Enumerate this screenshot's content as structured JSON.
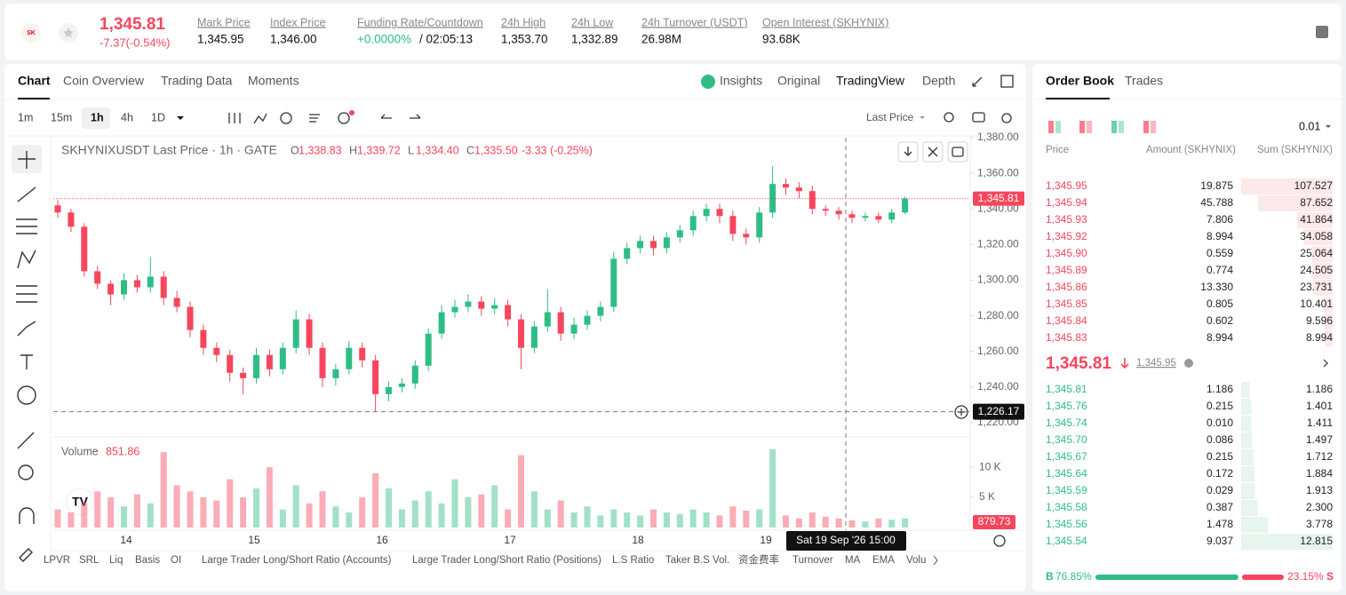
{
  "header": {
    "price": "1,345.81",
    "change": "-7.37(-0.54%)",
    "stats": [
      {
        "label": "Mark Price",
        "value": "1,345.95"
      },
      {
        "label": "Index Price",
        "value": "1,346.00"
      },
      {
        "label": "Funding Rate/Countdown",
        "value": "+0.0000%",
        "extra": "/ 02:05:13"
      },
      {
        "label": "24h High",
        "value": "1,353.70"
      },
      {
        "label": "24h Low",
        "value": "1,332.89"
      },
      {
        "label": "24h Turnover (USDT)",
        "value": "26.98M"
      },
      {
        "label": "Open Interest (SKHYNIX)",
        "value": "93.68K"
      }
    ]
  },
  "tabs": [
    "Chart",
    "Coin Overview",
    "Trading Data",
    "Moments"
  ],
  "view_tabs": [
    "Insights",
    "Original",
    "TradingView",
    "Depth"
  ],
  "intervals": [
    "1m",
    "15m",
    "1h",
    "4h",
    "1D"
  ],
  "price_source": "Last Price",
  "chart_data": {
    "type": "candlestick",
    "title": "SKHYNIXUSDT Last Price · 1h · GATE",
    "ohlc_legend": [
      {
        "k": "O",
        "v": "1,338.83"
      },
      {
        "k": "H",
        "v": "1,339.72"
      },
      {
        "k": "L",
        "v": "1,334.40"
      },
      {
        "k": "C",
        "v": "1,335.50"
      }
    ],
    "legend_change": "-3.33 (-0.25%)",
    "up_color": "#2ebd85",
    "down_color": "#f6465d",
    "candles": [
      [
        1342,
        1345,
        1335,
        1338
      ],
      [
        1338,
        1340,
        1327,
        1330
      ],
      [
        1330,
        1332,
        1302,
        1305
      ],
      [
        1305,
        1308,
        1295,
        1298
      ],
      [
        1298,
        1300,
        1286,
        1292
      ],
      [
        1292,
        1304,
        1289,
        1300
      ],
      [
        1300,
        1303,
        1293,
        1296
      ],
      [
        1296,
        1313,
        1293,
        1302
      ],
      [
        1302,
        1305,
        1286,
        1290
      ],
      [
        1290,
        1294,
        1282,
        1285
      ],
      [
        1285,
        1288,
        1268,
        1272
      ],
      [
        1272,
        1275,
        1258,
        1262
      ],
      [
        1262,
        1265,
        1254,
        1258
      ],
      [
        1258,
        1261,
        1243,
        1248
      ],
      [
        1248,
        1251,
        1236,
        1245
      ],
      [
        1245,
        1262,
        1242,
        1258
      ],
      [
        1258,
        1261,
        1246,
        1250
      ],
      [
        1250,
        1265,
        1247,
        1262
      ],
      [
        1262,
        1283,
        1259,
        1278
      ],
      [
        1278,
        1281,
        1258,
        1262
      ],
      [
        1262,
        1265,
        1240,
        1245
      ],
      [
        1245,
        1253,
        1241,
        1250
      ],
      [
        1250,
        1266,
        1247,
        1262
      ],
      [
        1262,
        1265,
        1251,
        1255
      ],
      [
        1255,
        1258,
        1226,
        1236
      ],
      [
        1236,
        1243,
        1232,
        1240
      ],
      [
        1240,
        1245,
        1237,
        1242
      ],
      [
        1242,
        1255,
        1239,
        1252
      ],
      [
        1252,
        1273,
        1249,
        1270
      ],
      [
        1270,
        1286,
        1267,
        1282
      ],
      [
        1282,
        1289,
        1279,
        1285
      ],
      [
        1285,
        1292,
        1282,
        1288
      ],
      [
        1288,
        1291,
        1280,
        1284
      ],
      [
        1284,
        1290,
        1281,
        1286
      ],
      [
        1286,
        1289,
        1274,
        1278
      ],
      [
        1278,
        1281,
        1250,
        1262
      ],
      [
        1262,
        1277,
        1259,
        1274
      ],
      [
        1274,
        1295,
        1271,
        1282
      ],
      [
        1282,
        1285,
        1266,
        1270
      ],
      [
        1270,
        1279,
        1267,
        1275
      ],
      [
        1275,
        1283,
        1272,
        1280
      ],
      [
        1280,
        1288,
        1277,
        1285
      ],
      [
        1285,
        1316,
        1282,
        1312
      ],
      [
        1312,
        1321,
        1309,
        1318
      ],
      [
        1318,
        1325,
        1315,
        1322
      ],
      [
        1322,
        1325,
        1314,
        1318
      ],
      [
        1318,
        1327,
        1315,
        1324
      ],
      [
        1324,
        1331,
        1321,
        1328
      ],
      [
        1328,
        1339,
        1325,
        1336
      ],
      [
        1336,
        1343,
        1333,
        1340
      ],
      [
        1340,
        1343,
        1332,
        1336
      ],
      [
        1336,
        1339,
        1322,
        1326
      ],
      [
        1326,
        1329,
        1320,
        1324
      ],
      [
        1324,
        1341,
        1321,
        1338
      ],
      [
        1338,
        1364,
        1335,
        1354
      ],
      [
        1354,
        1357,
        1348,
        1352
      ],
      [
        1352,
        1355,
        1346,
        1350
      ],
      [
        1350,
        1353,
        1337,
        1340
      ],
      [
        1340,
        1342,
        1336,
        1339
      ],
      [
        1339,
        1341,
        1334,
        1337
      ],
      [
        1337,
        1339,
        1332,
        1335
      ],
      [
        1335,
        1338,
        1333,
        1336
      ],
      [
        1336,
        1338,
        1332,
        1334
      ],
      [
        1334,
        1340,
        1332,
        1338
      ],
      [
        1338,
        1347,
        1337,
        1345.81
      ]
    ],
    "volumes": [
      3000,
      2500,
      4000,
      6000,
      5000,
      3500,
      5500,
      4000,
      12500,
      7000,
      6000,
      5000,
      4500,
      8000,
      5000,
      6500,
      10000,
      3000,
      7000,
      4000,
      6000,
      3500,
      2500,
      5000,
      9000,
      6500,
      3000,
      4500,
      6000,
      4000,
      8000,
      5000,
      5500,
      7000,
      3000,
      12000,
      6000,
      3000,
      4500,
      2500,
      3500,
      2000,
      3000,
      2500,
      2000,
      3000,
      2500,
      2200,
      3000,
      2500,
      2000,
      3500,
      2800,
      3000,
      13000,
      2000,
      1500,
      2500,
      1800,
      1500,
      1200,
      1000,
      1500,
      1300,
      1500
    ],
    "volume_label": "Volume",
    "volume_value": "851.86",
    "ylim": [
      1213,
      1382
    ],
    "yticks": [
      {
        "value": 1220,
        "label": "1,220.00"
      },
      {
        "value": 1240,
        "label": "1,240.00"
      },
      {
        "value": 1260,
        "label": "1,260.00"
      },
      {
        "value": 1280,
        "label": "1,280.00"
      },
      {
        "value": 1300,
        "label": "1,300.00"
      },
      {
        "value": 1320,
        "label": "1,320.00"
      },
      {
        "value": 1340,
        "label": "1,340.00"
      },
      {
        "value": 1360,
        "label": "1,360.00"
      },
      {
        "value": 1380,
        "label": "1,380.00"
      }
    ],
    "y2lim": [
      0,
      14000
    ],
    "y2ticks": [
      {
        "value": 5000,
        "label": "5 K"
      },
      {
        "value": 10000,
        "label": "10 K"
      }
    ],
    "xtick_labels": [
      "14",
      "15",
      "16",
      "17",
      "18",
      "19"
    ],
    "last_price": {
      "value": 1345.81,
      "label": "1,345.81"
    },
    "crosshair_price": {
      "value": 1226.17,
      "label": "1,226.17"
    },
    "crosshair_volume": 879.73,
    "crosshair_time": "Sat 19 Sep '26   15:00"
  },
  "indicators": [
    "LPVR",
    "SRL",
    "Liq",
    "Basis",
    "OI",
    "Large Trader Long/Short Ratio (Accounts)",
    "Large Trader Long/Short Ratio (Positions)",
    "L.S Ratio",
    "Taker B.S Vol.",
    "资金费率",
    "Turnover",
    "MA",
    "EMA",
    "Volu"
  ],
  "order_book": {
    "tabs": [
      "Order Book",
      "Trades"
    ],
    "tick_size": "0.01",
    "columns": [
      "Price",
      "Amount (SKHYNIX)",
      "Sum (SKHYNIX)"
    ],
    "asks": [
      [
        "1,345.95",
        "19.875",
        107.527,
        "107.527"
      ],
      [
        "1,345.94",
        "45.788",
        87.652,
        "87.652"
      ],
      [
        "1,345.93",
        "7.806",
        41.864,
        "41.864"
      ],
      [
        "1,345.92",
        "8.994",
        34.058,
        "34.058"
      ],
      [
        "1,345.90",
        "0.559",
        25.064,
        "25.064"
      ],
      [
        "1,345.89",
        "0.774",
        24.505,
        "24.505"
      ],
      [
        "1,345.86",
        "13.330",
        23.731,
        "23.731"
      ],
      [
        "1,345.85",
        "0.805",
        10.401,
        "10.401"
      ],
      [
        "1,345.84",
        "0.602",
        9.596,
        "9.596"
      ],
      [
        "1,345.83",
        "8.994",
        8.994,
        "8.994"
      ]
    ],
    "bids": [
      [
        "1,345.81",
        "1.186",
        1.186,
        "1.186"
      ],
      [
        "1,345.76",
        "0.215",
        1.401,
        "1.401"
      ],
      [
        "1,345.74",
        "0.010",
        1.411,
        "1.411"
      ],
      [
        "1,345.70",
        "0.086",
        1.497,
        "1.497"
      ],
      [
        "1,345.67",
        "0.215",
        1.712,
        "1.712"
      ],
      [
        "1,345.64",
        "0.172",
        1.884,
        "1.884"
      ],
      [
        "1,345.59",
        "0.029",
        1.913,
        "1.913"
      ],
      [
        "1,345.58",
        "0.387",
        2.3,
        "2.300"
      ],
      [
        "1,345.56",
        "1.478",
        3.778,
        "3.778"
      ],
      [
        "1,345.54",
        "9.037",
        12.815,
        "12.815"
      ]
    ],
    "mid_price": "1,345.81",
    "mark_price": "1,345.95",
    "buy_letter": "B",
    "sell_letter": "S",
    "buy": {
      "value": 76.85,
      "label": "76.85%"
    },
    "sell": {
      "value": 23.15,
      "label": "23.15%"
    }
  }
}
